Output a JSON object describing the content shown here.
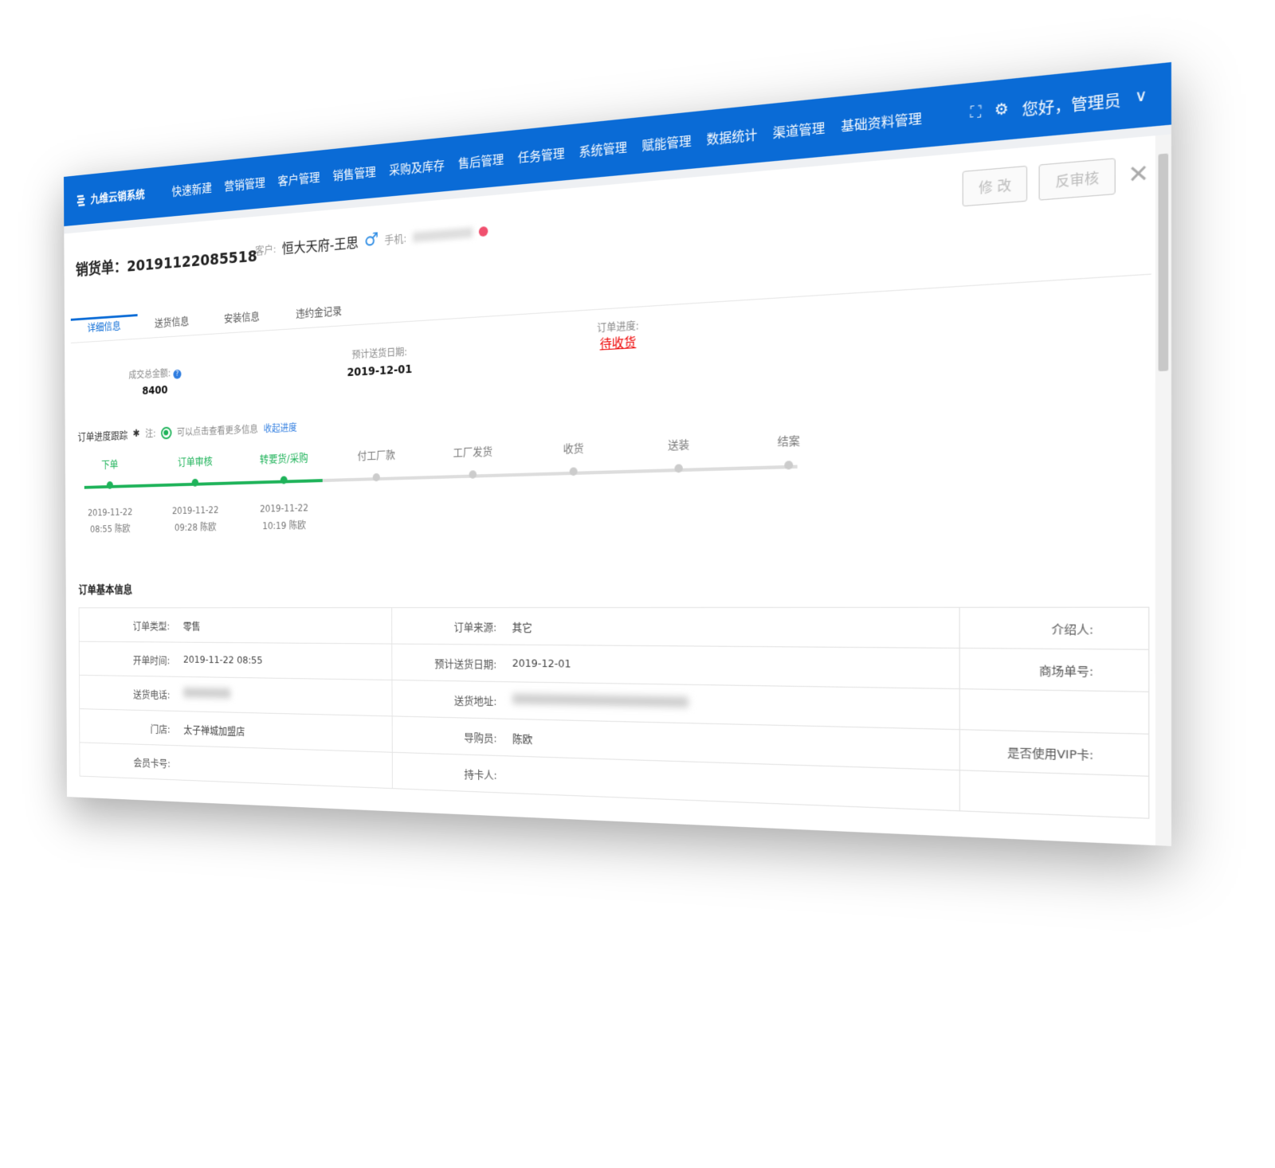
{
  "app": {
    "name": "九维云销系统",
    "nav": [
      "快速新建",
      "营销管理",
      "客户管理",
      "销售管理",
      "采购及库存",
      "售后管理",
      "任务管理",
      "系统管理",
      "赋能管理",
      "数据统计",
      "渠道管理",
      "基础资料管理"
    ],
    "greeting": "您好，管理员",
    "brand_color": "#0a6bd6"
  },
  "order": {
    "title": "销货单：",
    "number": "20191122085518",
    "customer_label": "客户:",
    "customer": "恒大天府-王思",
    "phone_label": "手机:",
    "edit": "修 改",
    "unaudit": "反审核"
  },
  "tabs": [
    "详细信息",
    "送货信息",
    "安装信息",
    "违约金记录"
  ],
  "summary": {
    "amount_label": "成交总金额:",
    "amount": "8400",
    "date_label": "预计送货日期:",
    "date": "2019-12-01",
    "progress_label": "订单进度:",
    "progress": "待收货"
  },
  "tracking": {
    "title": "订单进度跟踪",
    "note": "注:",
    "hint": "可以点击查看更多信息",
    "collapse": "收起进度",
    "steps": [
      {
        "name": "下单",
        "date": "2019-11-22",
        "time": "08:55 陈欧",
        "done": true
      },
      {
        "name": "订单审核",
        "date": "2019-11-22",
        "time": "09:28 陈欧",
        "done": true
      },
      {
        "name": "转要货/采购",
        "date": "2019-11-22",
        "time": "10:19 陈欧",
        "done": true
      },
      {
        "name": "付工厂款",
        "done": false
      },
      {
        "name": "工厂发货",
        "done": false
      },
      {
        "name": "收货",
        "done": false
      },
      {
        "name": "送装",
        "done": false
      },
      {
        "name": "结案",
        "done": false
      }
    ]
  },
  "basic": {
    "title": "订单基本信息",
    "rows": [
      [
        "订单类型:",
        "零售",
        "订单来源:",
        "其它",
        "介绍人:",
        ""
      ],
      [
        "开单时间:",
        "2019-11-22 08:55",
        "预计送货日期:",
        "2019-12-01",
        "商场单号:",
        ""
      ],
      [
        "送货电话:",
        "",
        "送货地址:",
        "",
        "",
        ""
      ],
      [
        "门店:",
        "太子禅城加盟店",
        "导购员:",
        "陈欧",
        "是否使用VIP卡:",
        ""
      ],
      [
        "会员卡号:",
        "",
        "持卡人:",
        "",
        "",
        ""
      ]
    ]
  }
}
